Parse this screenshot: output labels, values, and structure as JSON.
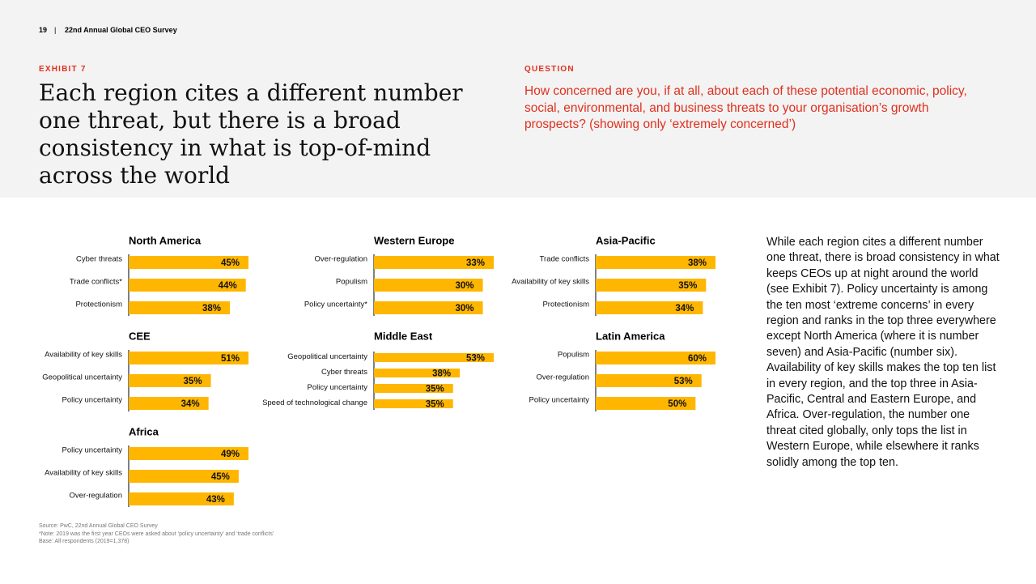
{
  "header": {
    "page": "19",
    "separator": "|",
    "publication": "22nd Annual Global CEO Survey"
  },
  "exhibit": {
    "label": "EXHIBIT 7",
    "title": "Each region cites a different number one threat, but there is a broad consistency in what is top-of-mind across the world"
  },
  "question": {
    "label": "QUESTION",
    "text": "How concerned are you, if at all, about each of these potential economic, policy, social, environmental, and business threats to your organisation’s growth prospects? (showing only ‘extremely concerned’)"
  },
  "chart_data": [
    {
      "type": "bar",
      "title": "North America",
      "categories": [
        "Cyber threats",
        "Trade conflicts*",
        "Protectionism"
      ],
      "values": [
        45,
        44,
        38
      ],
      "value_labels": [
        "45%",
        "44%",
        "38%"
      ],
      "color": "#ffb600"
    },
    {
      "type": "bar",
      "title": "Western Europe",
      "categories": [
        "Over-regulation",
        "Populism",
        "Policy uncertainty*"
      ],
      "values": [
        33,
        30,
        30
      ],
      "value_labels": [
        "33%",
        "30%",
        "30%"
      ],
      "color": "#ffb600"
    },
    {
      "type": "bar",
      "title": "Asia-Pacific",
      "categories": [
        "Trade conflicts",
        "Availability of key skills",
        "Protectionism"
      ],
      "values": [
        38,
        35,
        34
      ],
      "value_labels": [
        "38%",
        "35%",
        "34%"
      ],
      "color": "#ffb600"
    },
    {
      "type": "bar",
      "title": "CEE",
      "categories": [
        "Availability of key skills",
        "Geopolitical uncertainty",
        "Policy uncertainty"
      ],
      "values": [
        51,
        35,
        34
      ],
      "value_labels": [
        "51%",
        "35%",
        "34%"
      ],
      "color": "#ffb600"
    },
    {
      "type": "bar",
      "title": "Middle East",
      "categories": [
        "Geopolitical uncertainty",
        "Cyber threats",
        "Policy uncertainty",
        "Speed of technological change"
      ],
      "values": [
        53,
        38,
        35,
        35
      ],
      "value_labels": [
        "53%",
        "38%",
        "35%",
        "35%"
      ],
      "color": "#ffb600"
    },
    {
      "type": "bar",
      "title": "Latin America",
      "categories": [
        "Populism",
        "Over-regulation",
        "Policy uncertainty"
      ],
      "values": [
        60,
        53,
        50
      ],
      "value_labels": [
        "60%",
        "53%",
        "50%"
      ],
      "color": "#ffb600"
    },
    {
      "type": "bar",
      "title": "Africa",
      "categories": [
        "Policy uncertainty",
        "Availability of key skills",
        "Over-regulation"
      ],
      "values": [
        49,
        45,
        43
      ],
      "value_labels": [
        "49%",
        "45%",
        "43%"
      ],
      "color": "#ffb600"
    }
  ],
  "body": "While each region cites a different number one threat, there is broad consistency in what keeps CEOs up at night around the world (see Exhibit 7). Policy uncertainty is among the ten most ‘extreme concerns’ in every region and ranks in the top three everywhere except North America (where it is number seven) and Asia-Pacific (number six). Availability of key skills makes the top ten list in every region, and the top three in Asia-Pacific, Central and Eastern Europe, and Africa. Over-regulation, the number one threat cited globally, only tops the list in Western Europe, while elsewhere it ranks solidly among the top ten.",
  "footnotes": [
    "Source: PwC, 22nd Annual Global CEO Survey",
    "*Note: 2019 was the first year CEOs were asked about ‘policy uncertainty’ and ‘trade conflicts’",
    "Base: All respondents (2019=1,378)"
  ]
}
